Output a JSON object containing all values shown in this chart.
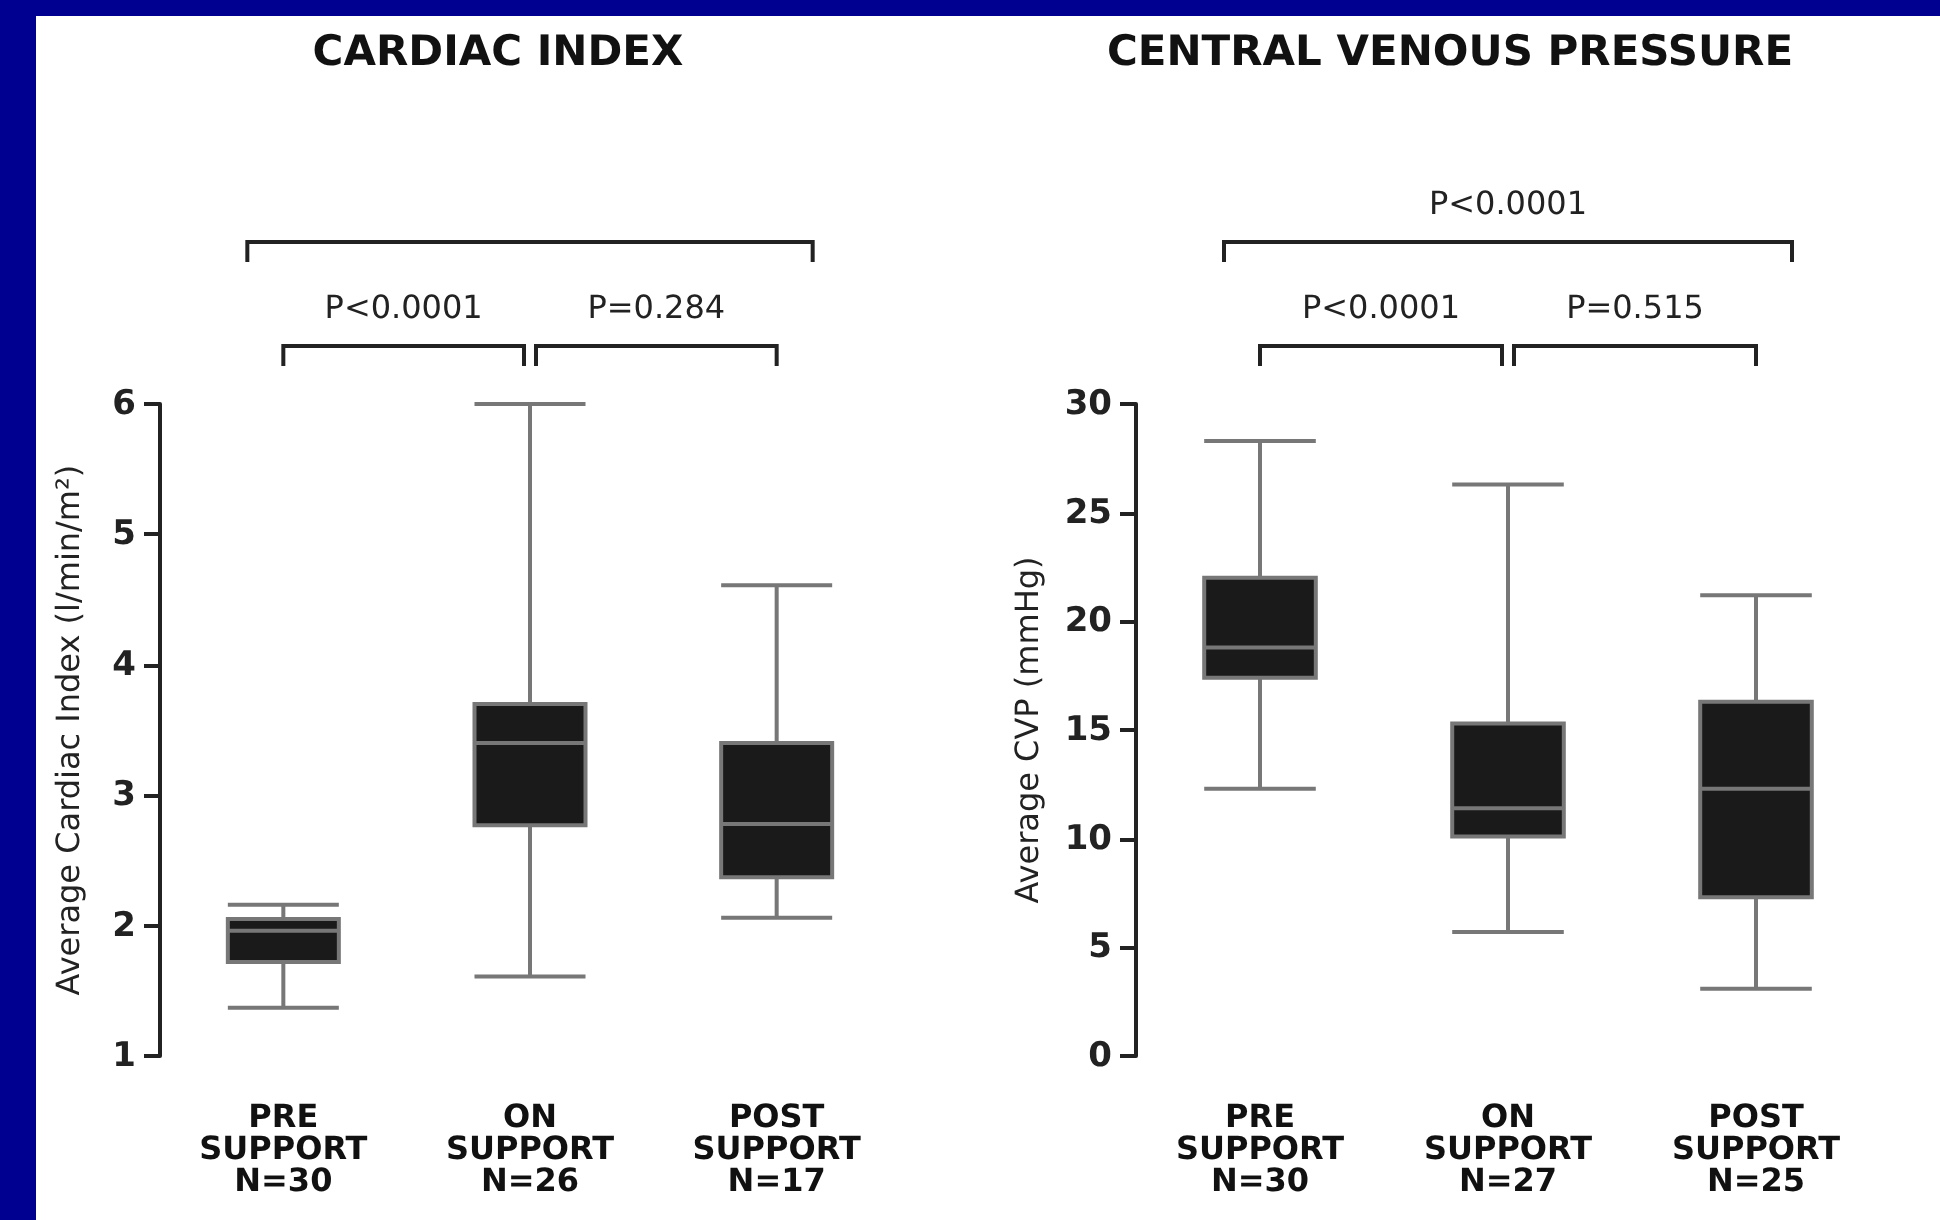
{
  "chart_data": [
    {
      "type": "box",
      "title": "CARDIAC INDEX",
      "ylabel": "Average Cardiac Index (l/min/m²)",
      "categories": [
        "PRE\nSUPPORT\nN=30",
        "ON\nSUPPORT\nN=26",
        "POST\nSUPPORT\nN=17"
      ],
      "color": "#1a1a1a",
      "ylim": [
        1,
        6
      ],
      "yticks": [
        1,
        2,
        3,
        4,
        5,
        6
      ],
      "grid": false,
      "boxes": [
        {
          "low": 1.37,
          "q1": 1.72,
          "median": 1.96,
          "q3": 2.05,
          "high": 2.16
        },
        {
          "low": 1.61,
          "q1": 2.77,
          "median": 3.4,
          "q3": 3.7,
          "high": 6.0
        },
        {
          "low": 2.06,
          "q1": 2.37,
          "median": 2.78,
          "q3": 3.4,
          "high": 4.61
        }
      ],
      "annotations": [
        "P<0.0001",
        "P=0.284"
      ]
    },
    {
      "type": "box",
      "title": "CENTRAL VENOUS PRESSURE",
      "ylabel": "Average CVP (mmHg)",
      "categories": [
        "PRE\nSUPPORT\nN=30",
        "ON\nSUPPORT\nN=27",
        "POST\nSUPPORT\nN=25"
      ],
      "color": "#1a1a1a",
      "ylim": [
        0,
        30
      ],
      "yticks": [
        0,
        5,
        10,
        15,
        20,
        25,
        30
      ],
      "grid": false,
      "boxes": [
        {
          "low": 12.3,
          "q1": 17.4,
          "median": 18.8,
          "q3": 22.0,
          "high": 28.3
        },
        {
          "low": 5.7,
          "q1": 10.1,
          "median": 11.4,
          "q3": 15.3,
          "high": 26.3
        },
        {
          "low": 3.1,
          "q1": 7.3,
          "median": 12.3,
          "q3": 16.3,
          "high": 21.2
        }
      ],
      "annotations": [
        "P<0.0001",
        "P=0.515",
        "P<0.0001"
      ]
    }
  ]
}
